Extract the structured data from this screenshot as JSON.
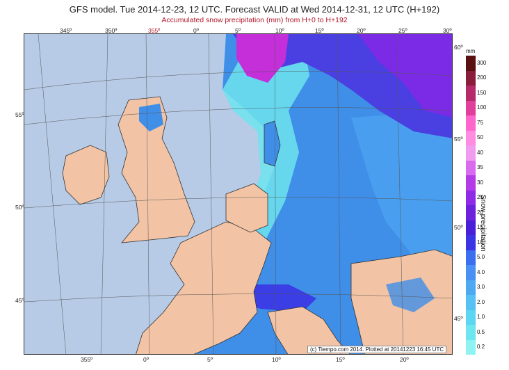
{
  "title": "GFS model. Tue 2014-12-23, 12 UTC. Forecast VALID at Wed 2014-12-31, 12 UTC (H+192)",
  "subtitle": "Accumulated snow precipitation (mm) from H+0 to H+192",
  "colors": {
    "subtitle": "#b0182a",
    "land": "#f2c3a4",
    "sea": "#b7cbe6",
    "snow_light": "#6fe4ee",
    "snow_mid": "#3f8ee8",
    "snow_heavy": "#4a3fe0",
    "snow_extreme": "#b01fd0"
  },
  "longitude_labels_top": [
    "345º",
    "350º",
    "355º",
    "0º",
    "5º",
    "10º",
    "15º",
    "20º",
    "25º",
    "30º"
  ],
  "longitude_labels_bottom": [
    "355º",
    "0º",
    "5º",
    "10º",
    "15º",
    "20º"
  ],
  "latitude_labels_left": [
    "55º",
    "50º",
    "45º"
  ],
  "latitude_labels_right": [
    "60º",
    "55º",
    "50º",
    "45º"
  ],
  "credit": "(c) Tiempo.com 2014. Plotted at 20141223 16:45 UTC",
  "legend": {
    "unit": "mm",
    "title": "Snow precipitation",
    "levels": [
      "300",
      "200",
      "150",
      "100",
      "75",
      "50",
      "40",
      "35",
      "30",
      "25",
      "20",
      "15",
      "10",
      "5.0",
      "4.0",
      "3.0",
      "2.0",
      "1.0",
      "0.5",
      "0.2"
    ],
    "swatch_colors": [
      "#5a1010",
      "#8a1e3a",
      "#b62a6a",
      "#e03f9b",
      "#ff66cc",
      "#ff8cde",
      "#f29cf0",
      "#d86bee",
      "#b43ce8",
      "#8f2be6",
      "#6c22dc",
      "#4a1fd8",
      "#3b34e4",
      "#3c6ff0",
      "#4a8ff3",
      "#4fa9f2",
      "#56c1f2",
      "#5dd6f1",
      "#6ee6ef",
      "#8ff3f2"
    ]
  }
}
